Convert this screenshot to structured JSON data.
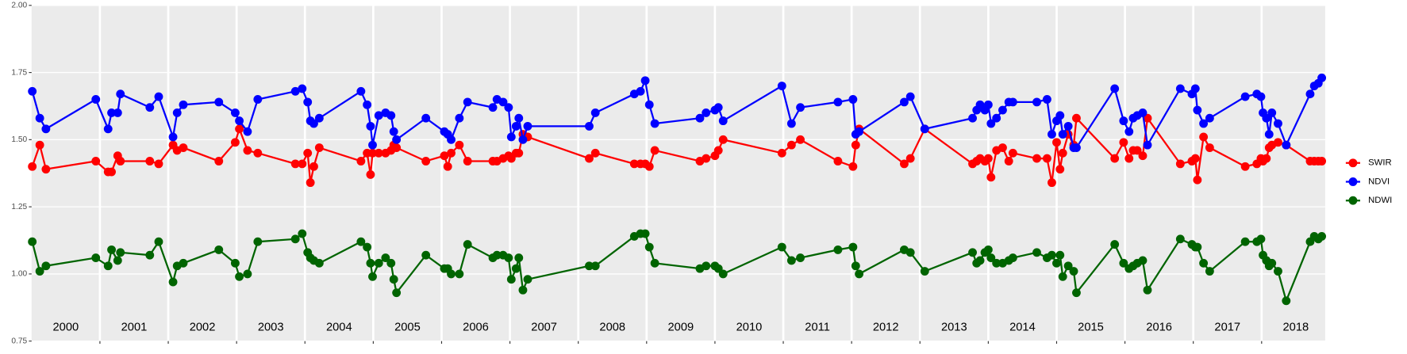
{
  "chart_data": {
    "type": "line",
    "x": [
      2000.01,
      2000.12,
      2000.21,
      2000.94,
      2001.12,
      2001.17,
      2001.26,
      2001.3,
      2001.73,
      2001.86,
      2002.07,
      2002.13,
      2002.22,
      2002.74,
      2002.98,
      2003.04,
      2003.16,
      2003.31,
      2003.86,
      2003.96,
      2004.04,
      2004.08,
      2004.13,
      2004.21,
      2004.82,
      2004.91,
      2004.96,
      2004.99,
      2005.08,
      2005.18,
      2005.26,
      2005.3,
      2005.34,
      2005.77,
      2006.04,
      2006.09,
      2006.14,
      2006.26,
      2006.38,
      2006.75,
      2006.81,
      2006.9,
      2006.98,
      2007.02,
      2007.09,
      2007.13,
      2007.19,
      2007.26,
      2008.16,
      2008.25,
      2008.82,
      2008.91,
      2008.98,
      2009.04,
      2009.12,
      2009.78,
      2009.87,
      2010.0,
      2010.05,
      2010.12,
      2010.98,
      2011.12,
      2011.25,
      2011.8,
      2012.02,
      2012.06,
      2012.11,
      2012.77,
      2012.86,
      2013.07,
      2013.77,
      2013.83,
      2013.88,
      2013.95,
      2014.0,
      2014.04,
      2014.12,
      2014.21,
      2014.3,
      2014.36,
      2014.71,
      2014.86,
      2014.93,
      2015.0,
      2015.05,
      2015.09,
      2015.17,
      2015.25,
      2015.29,
      2015.85,
      2015.98,
      2016.06,
      2016.12,
      2016.18,
      2016.26,
      2016.33,
      2016.81,
      2016.98,
      2017.03,
      2017.06,
      2017.15,
      2017.24,
      2017.76,
      2017.93,
      2017.99,
      2018.02,
      2018.07,
      2018.11,
      2018.15,
      2018.24,
      2018.36,
      2018.71,
      2018.77,
      2018.83,
      2018.88
    ],
    "series": [
      {
        "name": "SWIR",
        "color": "#ff0000",
        "values": [
          1.4,
          1.48,
          1.39,
          1.42,
          1.38,
          1.38,
          1.44,
          1.42,
          1.42,
          1.41,
          1.48,
          1.46,
          1.47,
          1.42,
          1.49,
          1.54,
          1.46,
          1.45,
          1.41,
          1.41,
          1.45,
          1.34,
          1.4,
          1.47,
          1.42,
          1.45,
          1.37,
          1.45,
          1.45,
          1.45,
          1.46,
          1.48,
          1.47,
          1.42,
          1.44,
          1.4,
          1.45,
          1.48,
          1.42,
          1.42,
          1.42,
          1.43,
          1.44,
          1.43,
          1.45,
          1.45,
          1.52,
          1.51,
          1.43,
          1.45,
          1.41,
          1.41,
          1.41,
          1.4,
          1.46,
          1.42,
          1.43,
          1.44,
          1.46,
          1.5,
          1.45,
          1.48,
          1.5,
          1.42,
          1.4,
          1.48,
          1.54,
          1.41,
          1.43,
          1.54,
          1.41,
          1.42,
          1.43,
          1.42,
          1.43,
          1.36,
          1.46,
          1.47,
          1.42,
          1.45,
          1.43,
          1.43,
          1.34,
          1.49,
          1.39,
          1.45,
          1.52,
          1.48,
          1.58,
          1.43,
          1.49,
          1.43,
          1.46,
          1.46,
          1.44,
          1.58,
          1.41,
          1.42,
          1.43,
          1.35,
          1.51,
          1.47,
          1.4,
          1.41,
          1.43,
          1.42,
          1.43,
          1.47,
          1.48,
          1.49,
          1.48,
          1.42,
          1.42,
          1.42,
          1.42
        ]
      },
      {
        "name": "NDVI",
        "color": "#0000ff",
        "values": [
          1.68,
          1.58,
          1.54,
          1.65,
          1.54,
          1.6,
          1.6,
          1.67,
          1.62,
          1.66,
          1.51,
          1.6,
          1.63,
          1.64,
          1.6,
          1.57,
          1.53,
          1.65,
          1.68,
          1.69,
          1.64,
          1.57,
          1.56,
          1.58,
          1.68,
          1.63,
          1.55,
          1.48,
          1.59,
          1.6,
          1.59,
          1.53,
          1.5,
          1.58,
          1.53,
          1.52,
          1.5,
          1.58,
          1.64,
          1.62,
          1.65,
          1.64,
          1.62,
          1.51,
          1.55,
          1.58,
          1.5,
          1.55,
          1.55,
          1.6,
          1.67,
          1.68,
          1.72,
          1.63,
          1.56,
          1.58,
          1.6,
          1.61,
          1.62,
          1.57,
          1.7,
          1.56,
          1.62,
          1.64,
          1.65,
          1.52,
          1.53,
          1.64,
          1.66,
          1.54,
          1.58,
          1.61,
          1.63,
          1.61,
          1.63,
          1.56,
          1.58,
          1.61,
          1.64,
          1.64,
          1.64,
          1.65,
          1.52,
          1.57,
          1.59,
          1.52,
          1.55,
          1.47,
          1.47,
          1.69,
          1.57,
          1.53,
          1.58,
          1.59,
          1.6,
          1.48,
          1.69,
          1.67,
          1.69,
          1.61,
          1.56,
          1.58,
          1.66,
          1.67,
          1.66,
          1.6,
          1.58,
          1.52,
          1.6,
          1.56,
          1.48,
          1.67,
          1.7,
          1.71,
          1.73
        ]
      },
      {
        "name": "NDWI",
        "color": "#006400",
        "values": [
          1.12,
          1.01,
          1.03,
          1.06,
          1.03,
          1.09,
          1.05,
          1.08,
          1.07,
          1.12,
          0.97,
          1.03,
          1.04,
          1.09,
          1.04,
          0.99,
          1.0,
          1.12,
          1.13,
          1.15,
          1.08,
          1.06,
          1.05,
          1.04,
          1.12,
          1.1,
          1.04,
          0.99,
          1.04,
          1.06,
          1.04,
          0.98,
          0.93,
          1.07,
          1.02,
          1.02,
          1.0,
          1.0,
          1.11,
          1.06,
          1.07,
          1.07,
          1.06,
          0.98,
          1.02,
          1.06,
          0.94,
          0.98,
          1.03,
          1.03,
          1.14,
          1.15,
          1.15,
          1.1,
          1.04,
          1.02,
          1.03,
          1.03,
          1.02,
          1.0,
          1.1,
          1.05,
          1.06,
          1.09,
          1.1,
          1.03,
          1.0,
          1.09,
          1.08,
          1.01,
          1.08,
          1.04,
          1.05,
          1.08,
          1.09,
          1.06,
          1.04,
          1.04,
          1.05,
          1.06,
          1.08,
          1.06,
          1.07,
          1.04,
          1.07,
          0.99,
          1.03,
          1.01,
          0.93,
          1.11,
          1.04,
          1.02,
          1.03,
          1.04,
          1.05,
          0.94,
          1.13,
          1.11,
          1.1,
          1.1,
          1.04,
          1.01,
          1.12,
          1.12,
          1.13,
          1.07,
          1.05,
          1.03,
          1.04,
          1.01,
          0.9,
          1.12,
          1.14,
          1.13,
          1.14
        ]
      }
    ],
    "xlim": [
      2000,
      2018.93
    ],
    "xgrid": [
      2001,
      2002,
      2003,
      2004,
      2005,
      2006,
      2007,
      2008,
      2009,
      2010,
      2011,
      2012,
      2013,
      2014,
      2015,
      2016,
      2017,
      2018
    ],
    "year_labels": [
      {
        "value": 2000.5,
        "label": "2000"
      },
      {
        "value": 2001.5,
        "label": "2001"
      },
      {
        "value": 2002.5,
        "label": "2002"
      },
      {
        "value": 2003.5,
        "label": "2003"
      },
      {
        "value": 2004.5,
        "label": "2004"
      },
      {
        "value": 2005.5,
        "label": "2005"
      },
      {
        "value": 2006.5,
        "label": "2006"
      },
      {
        "value": 2007.5,
        "label": "2007"
      },
      {
        "value": 2008.5,
        "label": "2008"
      },
      {
        "value": 2009.5,
        "label": "2009"
      },
      {
        "value": 2010.5,
        "label": "2010"
      },
      {
        "value": 2011.5,
        "label": "2011"
      },
      {
        "value": 2012.5,
        "label": "2012"
      },
      {
        "value": 2013.5,
        "label": "2013"
      },
      {
        "value": 2014.5,
        "label": "2014"
      },
      {
        "value": 2015.5,
        "label": "2015"
      },
      {
        "value": 2016.5,
        "label": "2016"
      },
      {
        "value": 2017.5,
        "label": "2017"
      },
      {
        "value": 2018.5,
        "label": "2018"
      }
    ],
    "ylim": [
      0.75,
      2.0
    ],
    "yticks": [
      0.75,
      {
        "value": 1.0,
        "label": "1.00"
      },
      1.25,
      {
        "value": 1.5,
        "label": "1.50"
      },
      1.75,
      {
        "value": 2.0,
        "label": "2.00"
      }
    ],
    "grid": true,
    "legend": "right"
  }
}
